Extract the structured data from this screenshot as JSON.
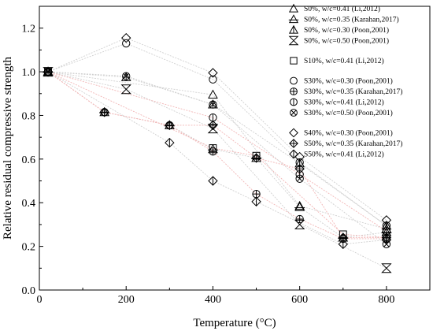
{
  "chart_data": {
    "type": "scatter",
    "xlabel": "Temperature (°C)",
    "ylabel": "Relative residual compressive strength",
    "xlim": [
      0,
      900
    ],
    "ylim": [
      0,
      1.3
    ],
    "xticks": [
      0,
      200,
      400,
      600,
      800
    ],
    "yticks": [
      0.0,
      0.2,
      0.4,
      0.6,
      0.8,
      1.0,
      1.2
    ],
    "xtick_labels": [
      "0",
      "200",
      "400",
      "600",
      "800"
    ],
    "ytick_labels": [
      "0.0",
      "0.2",
      "0.4",
      "0.6",
      "0.8",
      "1.0",
      "1.2"
    ],
    "grid": false,
    "legend_position": "top-right",
    "legend_groups": [
      [
        "s1",
        "s2",
        "s3",
        "s4"
      ],
      [
        "s5"
      ],
      [
        "s6",
        "s7",
        "s8",
        "s9"
      ],
      [
        "s10",
        "s11",
        "s12"
      ]
    ],
    "series": [
      {
        "id": "s1",
        "name": "S0%, w/c=0.41 (Li,2012)",
        "marker": "triangle",
        "line_color": "#d0d0d0",
        "points": [
          [
            20,
            1.0
          ],
          [
            400,
            0.895
          ],
          [
            600,
            0.385
          ],
          [
            800,
            0.28
          ]
        ]
      },
      {
        "id": "s2",
        "name": "S0%, w/c=0.35 (Karahan,2017)",
        "marker": "triangle-bar",
        "line_color": "#d0d0d0",
        "points": [
          [
            20,
            1.0
          ],
          [
            150,
            0.815
          ],
          [
            300,
            0.755
          ],
          [
            400,
            0.645
          ],
          [
            500,
            0.605
          ],
          [
            600,
            0.38
          ],
          [
            700,
            0.24
          ],
          [
            800,
            0.265
          ]
        ]
      },
      {
        "id": "s3",
        "name": "S0%, w/c=0.30 (Poon,2001)",
        "marker": "triangle-vbar",
        "line_color": "#d0d0d0",
        "points": [
          [
            20,
            1.0
          ],
          [
            200,
            0.975
          ],
          [
            400,
            0.85
          ],
          [
            600,
            0.58
          ],
          [
            800,
            0.295
          ]
        ]
      },
      {
        "id": "s4",
        "name": "S0%, w/c=0.50 (Poon,2001)",
        "marker": "hourglass",
        "line_color": "#d0d0d0",
        "points": [
          [
            20,
            1.0
          ],
          [
            200,
            0.92
          ],
          [
            400,
            0.74
          ],
          [
            600,
            0.3
          ],
          [
            800,
            0.1
          ]
        ]
      },
      {
        "id": "s5",
        "name": "S10%, w/c=0.41 (Li,2012)",
        "marker": "square",
        "line_color": "#f2b6b6",
        "points": [
          [
            20,
            1.0
          ],
          [
            400,
            0.65
          ],
          [
            500,
            0.615
          ],
          [
            700,
            0.255
          ],
          [
            800,
            0.24
          ]
        ]
      },
      {
        "id": "s6",
        "name": "S30%, w/c=0.30 (Poon,2001)",
        "marker": "circle",
        "line_color": "#d0d0d0",
        "points": [
          [
            20,
            1.0
          ],
          [
            200,
            1.13
          ],
          [
            400,
            0.965
          ],
          [
            600,
            0.585
          ],
          [
            800,
            0.295
          ]
        ]
      },
      {
        "id": "s7",
        "name": "S30%, w/c=0.35 (Karahan,2017)",
        "marker": "circle-plus",
        "line_color": "#f2b6b6",
        "points": [
          [
            20,
            1.0
          ],
          [
            150,
            0.815
          ],
          [
            300,
            0.755
          ],
          [
            400,
            0.635
          ],
          [
            500,
            0.44
          ],
          [
            600,
            0.325
          ],
          [
            700,
            0.235
          ],
          [
            800,
            0.235
          ]
        ]
      },
      {
        "id": "s8",
        "name": "S30%, w/c=0.41 (Li,2012)",
        "marker": "circle-vbar",
        "line_color": "#f2b6b6",
        "points": [
          [
            20,
            1.0
          ],
          [
            400,
            0.79
          ],
          [
            600,
            0.53
          ],
          [
            800,
            0.27
          ]
        ]
      },
      {
        "id": "s9",
        "name": "S30%, w/c=0.50 (Poon,2001)",
        "marker": "circle-x",
        "line_color": "#d0d0d0",
        "points": [
          [
            20,
            1.0
          ],
          [
            200,
            0.98
          ],
          [
            400,
            0.85
          ],
          [
            600,
            0.51
          ],
          [
            800,
            0.21
          ]
        ]
      },
      {
        "id": "s10",
        "name": "S40%, w/c=0.30 (Poon,2001)",
        "marker": "diamond",
        "line_color": "#d0d0d0",
        "points": [
          [
            20,
            1.0
          ],
          [
            200,
            1.155
          ],
          [
            400,
            0.995
          ],
          [
            600,
            0.61
          ],
          [
            800,
            0.32
          ]
        ]
      },
      {
        "id": "s11",
        "name": "S50%, w/c=0.35 (Karahan,2017)",
        "marker": "diamond-plus",
        "line_color": "#f2b6b6",
        "points": [
          [
            20,
            1.0
          ],
          [
            150,
            0.815
          ],
          [
            300,
            0.755
          ],
          [
            400,
            0.755
          ],
          [
            500,
            0.605
          ],
          [
            600,
            0.555
          ],
          [
            700,
            0.24
          ],
          [
            800,
            0.24
          ]
        ]
      },
      {
        "id": "s12",
        "name": "S50%, w/c=0.41 (Li,2012)",
        "marker": "diamond-half",
        "line_color": "#d0d0d0",
        "points": [
          [
            20,
            1.0
          ],
          [
            300,
            0.675
          ],
          [
            400,
            0.5
          ],
          [
            500,
            0.405
          ],
          [
            700,
            0.21
          ],
          [
            800,
            0.23
          ]
        ]
      }
    ]
  }
}
